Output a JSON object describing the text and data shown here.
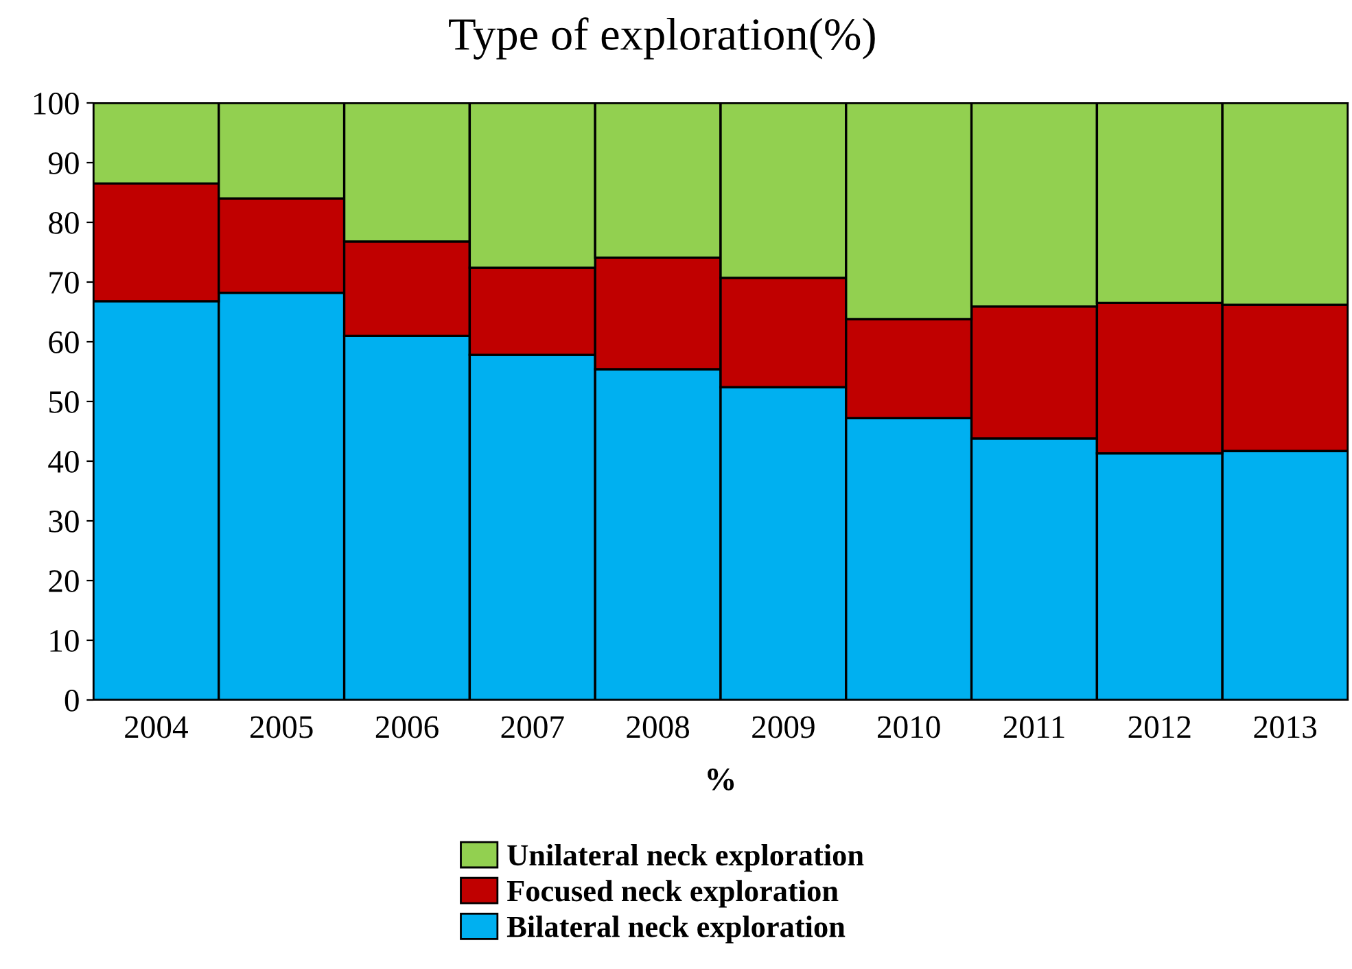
{
  "chart_data": {
    "type": "bar",
    "title": "Type of exploration(%)",
    "xlabel": "%",
    "stacked": true,
    "categories": [
      "2004",
      "2005",
      "2006",
      "2007",
      "2008",
      "2009",
      "2010",
      "2011",
      "2012",
      "2013"
    ],
    "series": [
      {
        "name": "Bilateral neck exploration",
        "color": "#00b0f0",
        "values": [
          66.8,
          68.2,
          61.0,
          57.8,
          55.4,
          52.4,
          47.2,
          43.8,
          41.3,
          41.7
        ]
      },
      {
        "name": "Focused neck exploration",
        "color": "#c00000",
        "values": [
          19.7,
          15.8,
          15.8,
          14.6,
          18.7,
          18.3,
          16.6,
          22.1,
          25.2,
          24.5
        ]
      },
      {
        "name": "Unilateral neck exploration",
        "color": "#92d050",
        "values": [
          13.5,
          16.0,
          23.2,
          27.6,
          25.9,
          29.3,
          36.2,
          34.1,
          33.5,
          33.8
        ]
      }
    ],
    "ylim": [
      0,
      100
    ],
    "yticks": [
      0,
      10,
      20,
      30,
      40,
      50,
      60,
      70,
      80,
      90,
      100
    ],
    "grid": false,
    "legend": "bottom"
  }
}
